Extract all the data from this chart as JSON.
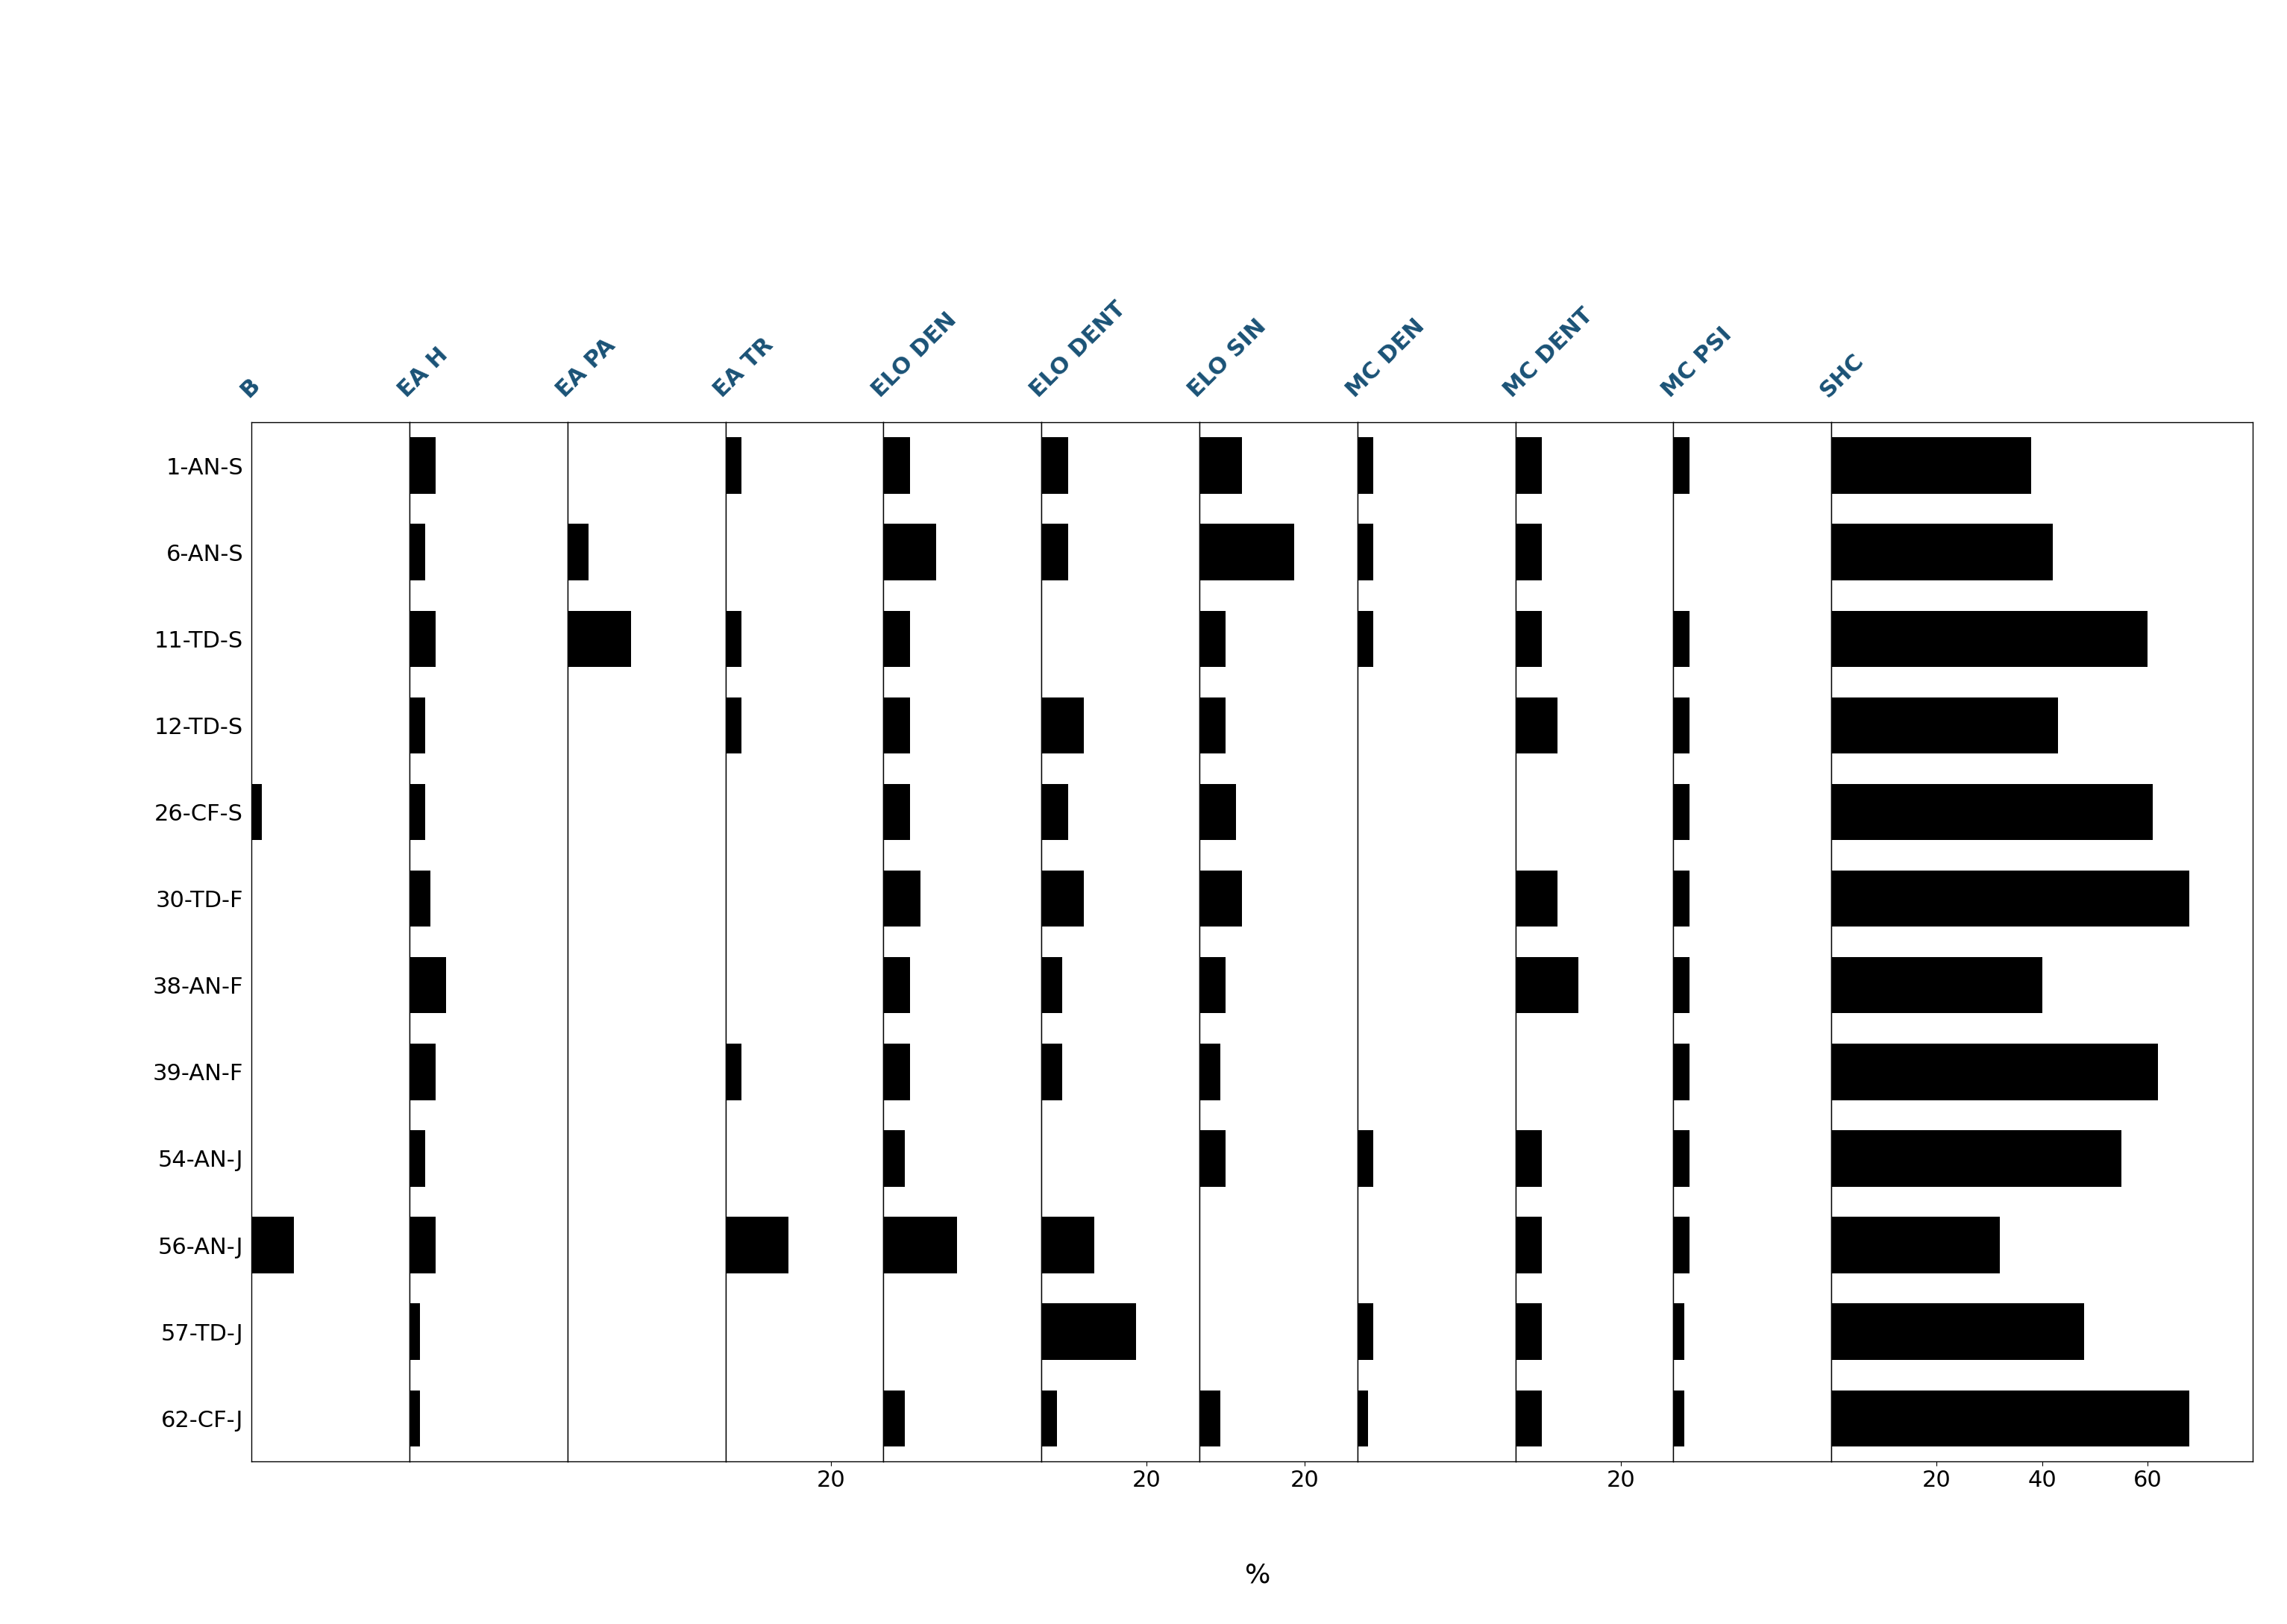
{
  "samples": [
    "1-AN-S",
    "6-AN-S",
    "11-TD-S",
    "12-TD-S",
    "26-CF-S",
    "30-TD-F",
    "38-AN-F",
    "39-AN-F",
    "54-AN-J",
    "56-AN-J",
    "57-TD-J",
    "62-CF-J"
  ],
  "columns": [
    "B",
    "EA H",
    "EA PA",
    "EA TR",
    "ELO DEN",
    "ELO DENT",
    "ELO SIN",
    "MC DEN",
    "MC DENT",
    "MC PSI",
    "SHC"
  ],
  "data": {
    "B": [
      0,
      0,
      0,
      0,
      2,
      0,
      0,
      0,
      0,
      8,
      0,
      0
    ],
    "EA H": [
      5,
      3,
      5,
      3,
      3,
      4,
      7,
      5,
      3,
      5,
      2,
      2
    ],
    "EA PA": [
      0,
      4,
      12,
      0,
      0,
      0,
      0,
      0,
      0,
      0,
      0,
      0
    ],
    "EA TR": [
      3,
      0,
      3,
      3,
      0,
      0,
      0,
      3,
      0,
      12,
      0,
      0
    ],
    "ELO DEN": [
      5,
      10,
      5,
      5,
      5,
      7,
      5,
      5,
      4,
      14,
      0,
      4
    ],
    "ELO DENT": [
      5,
      5,
      0,
      8,
      5,
      8,
      4,
      4,
      0,
      10,
      18,
      3
    ],
    "ELO SIN": [
      8,
      18,
      5,
      5,
      7,
      8,
      5,
      4,
      5,
      0,
      0,
      4
    ],
    "MC DEN": [
      3,
      3,
      3,
      0,
      0,
      0,
      0,
      0,
      3,
      0,
      3,
      2
    ],
    "MC DENT": [
      5,
      5,
      5,
      8,
      0,
      8,
      12,
      0,
      5,
      5,
      5,
      5
    ],
    "MC PSI": [
      3,
      0,
      3,
      3,
      3,
      3,
      3,
      3,
      3,
      3,
      2,
      2
    ],
    "SHC": [
      38,
      42,
      60,
      43,
      61,
      68,
      40,
      62,
      55,
      32,
      48,
      68
    ]
  },
  "xlims": {
    "B": [
      0,
      30
    ],
    "EA H": [
      0,
      30
    ],
    "EA PA": [
      0,
      30
    ],
    "EA TR": [
      0,
      30
    ],
    "ELO DEN": [
      0,
      30
    ],
    "ELO DENT": [
      0,
      30
    ],
    "ELO SIN": [
      0,
      30
    ],
    "MC DEN": [
      0,
      30
    ],
    "MC DENT": [
      0,
      30
    ],
    "MC PSI": [
      0,
      30
    ],
    "SHC": [
      0,
      80
    ]
  },
  "xticks": {
    "B": [],
    "EA H": [],
    "EA PA": [],
    "EA TR": [
      20
    ],
    "ELO DEN": [],
    "ELO DENT": [
      20
    ],
    "ELO SIN": [
      20
    ],
    "MC DEN": [],
    "MC DENT": [
      20
    ],
    "MC PSI": [],
    "SHC": [
      20,
      40,
      60
    ]
  },
  "bar_color": "#000000",
  "background_color": "#ffffff",
  "label_color": "#1a5276",
  "label_fontsize": 22,
  "tick_fontsize": 22,
  "ylabel_fontsize": 26
}
